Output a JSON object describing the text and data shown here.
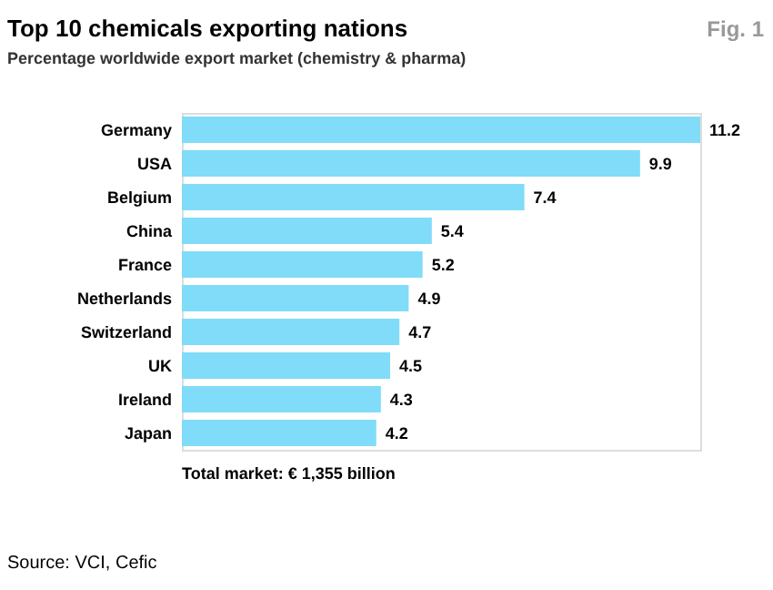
{
  "chart_data": {
    "type": "bar",
    "orientation": "horizontal",
    "title": "Top 10 chemicals exporting nations",
    "subtitle": "Percentage worldwide export market (chemistry & pharma)",
    "categories": [
      "Germany",
      "USA",
      "Belgium",
      "China",
      "France",
      "Netherlands",
      "Switzerland",
      "UK",
      "Ireland",
      "Japan"
    ],
    "values": [
      11.2,
      9.9,
      7.4,
      5.4,
      5.2,
      4.9,
      4.7,
      4.5,
      4.3,
      4.2
    ],
    "color": "#80dcf8",
    "data_labels": true,
    "grid": false,
    "annotations": [
      "Fig. 1",
      "Total market: € 1,355 billion",
      "Source: VCI, Cefic"
    ]
  }
}
